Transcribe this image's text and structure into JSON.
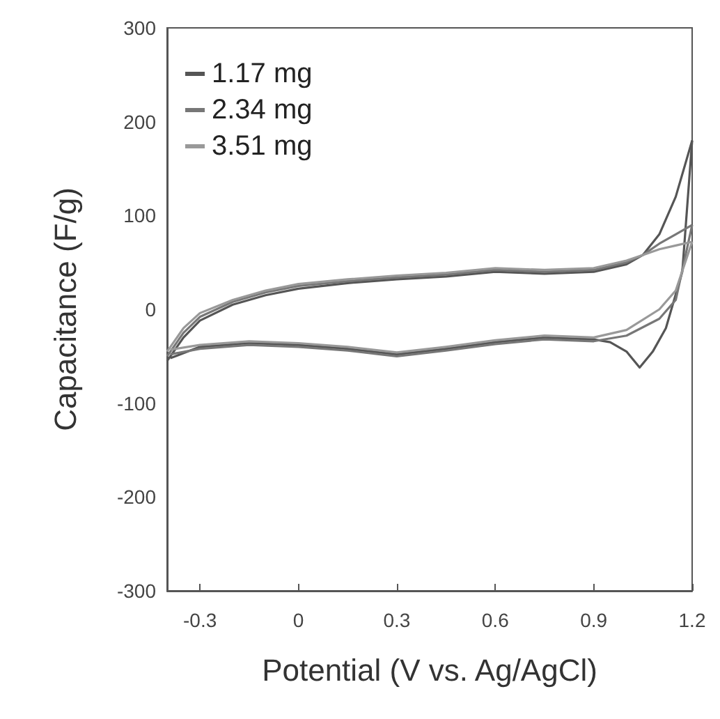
{
  "chart_data": {
    "type": "line",
    "xlabel": "Potential (V vs. Ag/AgCl)",
    "ylabel": "Capacitance (F/g)",
    "xlim": [
      -0.4,
      1.2
    ],
    "xticks": [
      -0.3,
      0.0,
      0.3,
      0.6,
      0.9,
      1.2
    ],
    "ylim": [
      -300,
      300
    ],
    "yticks": [
      -300,
      -200,
      -100,
      0,
      100,
      200,
      300
    ],
    "grid": false,
    "legend": "top left",
    "marker": "none",
    "line_style": "solid",
    "series": [
      {
        "name": "1.17 mg",
        "color": "#555555",
        "x": [
          -0.4,
          -0.35,
          -0.3,
          -0.2,
          -0.1,
          0,
          0.15,
          0.3,
          0.45,
          0.6,
          0.75,
          0.9,
          1.0,
          1.05,
          1.1,
          1.15,
          1.2
        ],
        "values": [
          -55,
          -30,
          -12,
          5,
          15,
          22,
          28,
          32,
          35,
          40,
          38,
          40,
          48,
          58,
          80,
          120,
          180
        ]
      },
      {
        "color": "#555555",
        "x": [
          -0.39,
          -0.3,
          -0.15,
          0,
          0.15,
          0.3,
          0.45,
          0.6,
          0.75,
          0.9,
          0.95,
          1.0,
          1.04,
          1.08,
          1.12,
          1.17,
          1.2
        ],
        "values": [
          -52,
          -40,
          -36,
          -38,
          -42,
          -48,
          -42,
          -35,
          -30,
          -32,
          -35,
          -45,
          -62,
          -45,
          -20,
          40,
          180
        ]
      },
      {
        "name": "2.34 mg",
        "color": "#777777",
        "x": [
          -0.4,
          -0.35,
          -0.3,
          -0.2,
          -0.1,
          0,
          0.15,
          0.3,
          0.45,
          0.6,
          0.75,
          0.9,
          1.0,
          1.05,
          1.1,
          1.15,
          1.2
        ],
        "values": [
          -50,
          -25,
          -8,
          8,
          18,
          25,
          30,
          34,
          37,
          42,
          40,
          42,
          50,
          58,
          70,
          80,
          90
        ]
      },
      {
        "color": "#777777",
        "x": [
          -0.39,
          -0.3,
          -0.15,
          0,
          0.15,
          0.3,
          0.45,
          0.6,
          0.75,
          0.9,
          1.0,
          1.1,
          1.15,
          1.2
        ],
        "values": [
          -48,
          -42,
          -38,
          -40,
          -44,
          -50,
          -44,
          -37,
          -32,
          -34,
          -28,
          -10,
          10,
          90
        ]
      },
      {
        "name": "3.51 mg",
        "color": "#999999",
        "x": [
          -0.4,
          -0.35,
          -0.3,
          -0.2,
          -0.1,
          0,
          0.15,
          0.3,
          0.45,
          0.6,
          0.75,
          0.9,
          1.0,
          1.05,
          1.1,
          1.15,
          1.2
        ],
        "values": [
          -45,
          -20,
          -4,
          10,
          20,
          27,
          32,
          36,
          39,
          44,
          42,
          44,
          52,
          58,
          64,
          68,
          72
        ]
      },
      {
        "color": "#999999",
        "x": [
          -0.39,
          -0.3,
          -0.15,
          0,
          0.15,
          0.3,
          0.45,
          0.6,
          0.75,
          0.9,
          1.0,
          1.1,
          1.15,
          1.2
        ],
        "values": [
          -43,
          -38,
          -34,
          -36,
          -40,
          -46,
          -40,
          -33,
          -28,
          -30,
          -22,
          0,
          20,
          72
        ]
      }
    ]
  }
}
